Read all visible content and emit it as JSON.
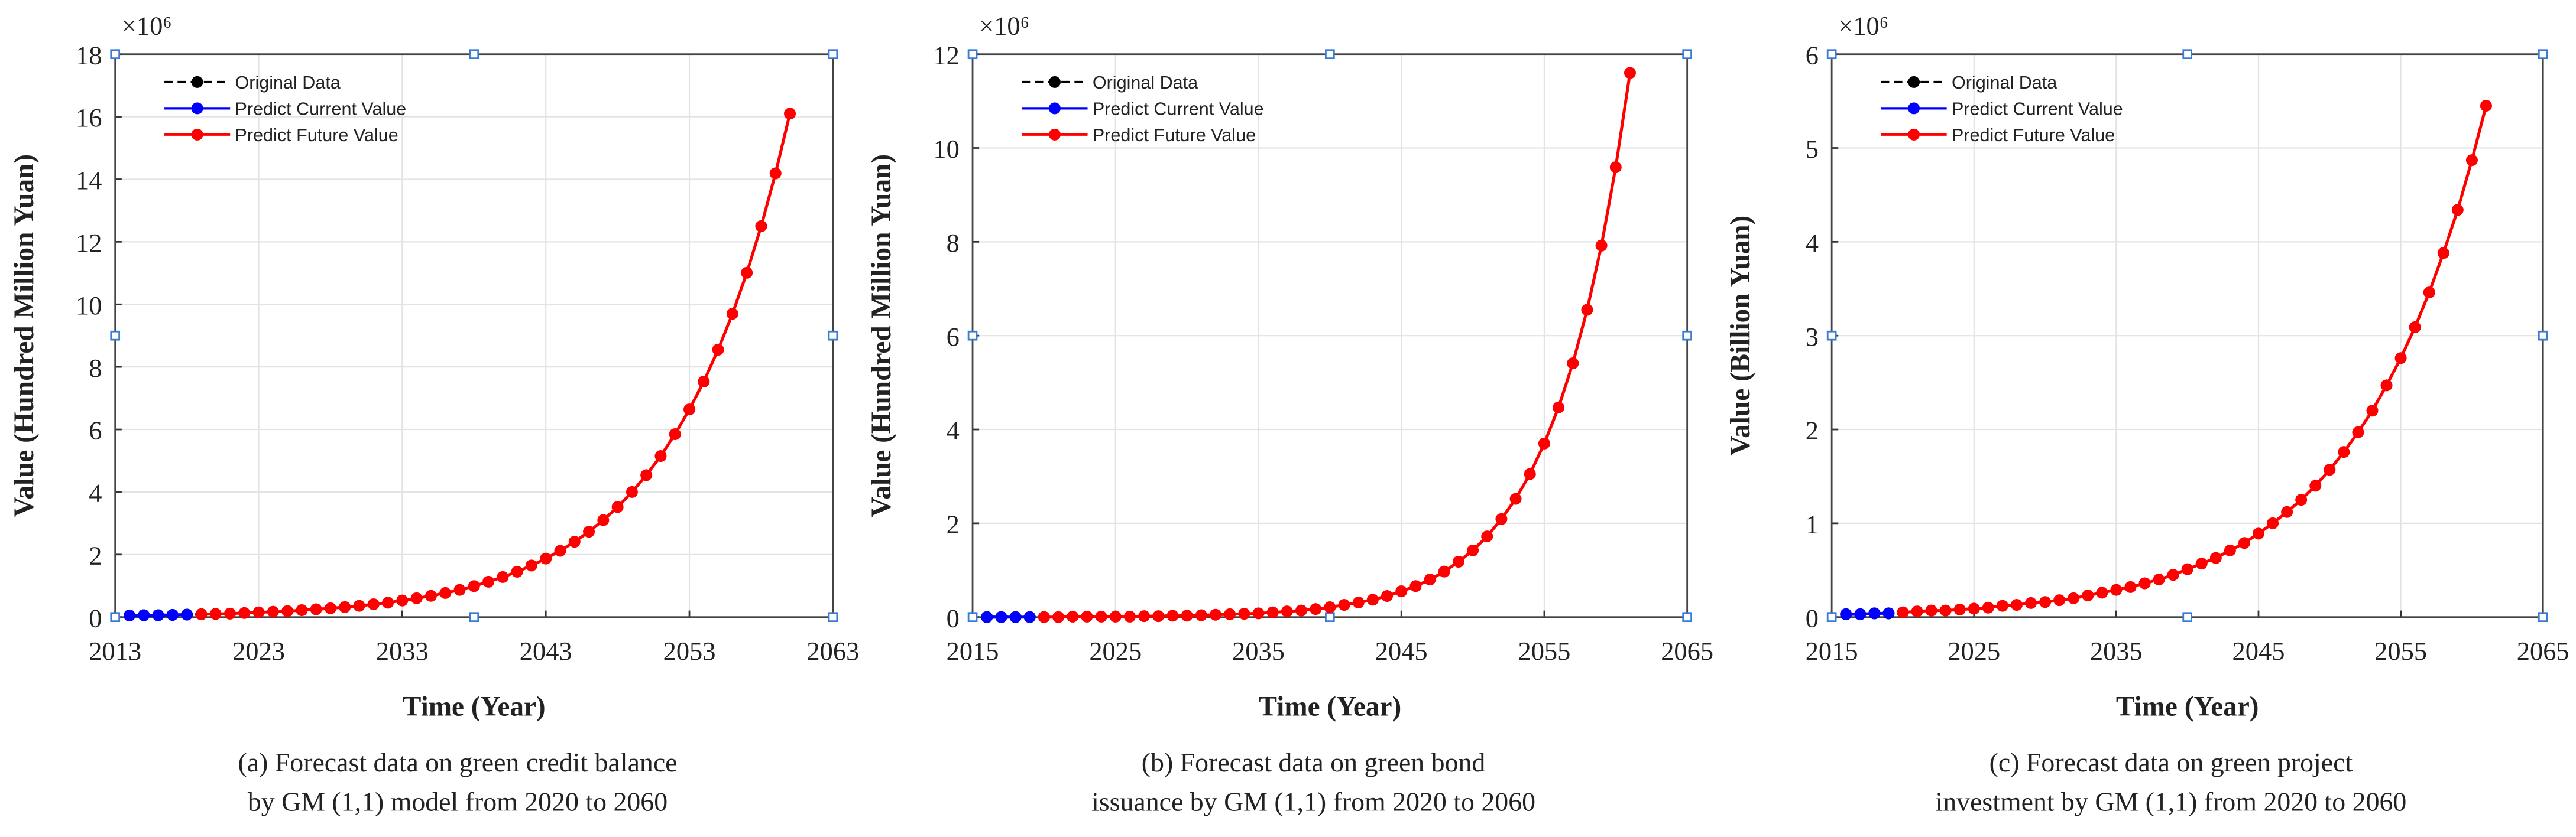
{
  "chart_data": [
    {
      "type": "line",
      "multiplier": "×10⁶",
      "xlabel": "Time (Year)",
      "ylabel": "Value (Hundred Million Yuan)",
      "caption": [
        "(a)  Forecast data on green credit balance",
        "by GM (1,1) model from 2020 to 2060"
      ],
      "xlim": [
        2013,
        2063
      ],
      "xticks": [
        2013,
        2023,
        2033,
        2043,
        2053,
        2063
      ],
      "ylim": [
        0,
        18
      ],
      "yticks": [
        0,
        2,
        4,
        6,
        8,
        10,
        12,
        14,
        16,
        18
      ],
      "grid": true,
      "legend": "upper left",
      "series": [
        {
          "name": "Original Data",
          "color": "#000000",
          "dashed": true,
          "x": [
            2014,
            2015,
            2016,
            2017,
            2018,
            2019
          ],
          "values": [
            0.05,
            0.06,
            0.06,
            0.07,
            0.08,
            0.09
          ]
        },
        {
          "name": "Predict Current Value",
          "color": "#0000ff",
          "x": [
            2014,
            2015,
            2016,
            2017,
            2018
          ],
          "values": [
            0.05,
            0.06,
            0.06,
            0.07,
            0.08
          ]
        },
        {
          "name": "Predict Future Value",
          "color": "#ff0000",
          "x": [
            2019,
            2020,
            2021,
            2022,
            2023,
            2024,
            2025,
            2026,
            2027,
            2028,
            2029,
            2030,
            2031,
            2032,
            2033,
            2034,
            2035,
            2036,
            2037,
            2038,
            2039,
            2040,
            2041,
            2042,
            2043,
            2044,
            2045,
            2046,
            2047,
            2048,
            2049,
            2050,
            2051,
            2052,
            2053,
            2054,
            2055,
            2056,
            2057,
            2058,
            2059,
            2060
          ],
          "values": [
            0.09,
            0.1,
            0.11,
            0.13,
            0.15,
            0.17,
            0.19,
            0.22,
            0.25,
            0.28,
            0.32,
            0.36,
            0.41,
            0.46,
            0.53,
            0.6,
            0.68,
            0.77,
            0.87,
            0.99,
            1.13,
            1.28,
            1.45,
            1.65,
            1.87,
            2.12,
            2.41,
            2.73,
            3.1,
            3.52,
            4.0,
            4.54,
            5.15,
            5.85,
            6.64,
            7.53,
            8.55,
            9.7,
            11.01,
            12.5,
            14.19,
            16.1
          ]
        }
      ]
    },
    {
      "type": "line",
      "multiplier": "×10⁶",
      "xlabel": "Time (Year)",
      "ylabel": "Value (Hundred Million Yuan)",
      "caption": [
        "(b)   Forecast data on green bond",
        "issuance by GM (1,1) from 2020 to 2060"
      ],
      "xlim": [
        2015,
        2065
      ],
      "xticks": [
        2015,
        2025,
        2035,
        2045,
        2055,
        2065
      ],
      "ylim": [
        0,
        12
      ],
      "yticks": [
        0,
        2,
        4,
        6,
        8,
        10,
        12
      ],
      "grid": true,
      "legend": "upper left",
      "series": [
        {
          "name": "Original Data",
          "color": "#000000",
          "dashed": true,
          "x": [
            2016,
            2017,
            2018,
            2019,
            2020
          ],
          "values": [
            0,
            0,
            0,
            0,
            0
          ]
        },
        {
          "name": "Predict Current Value",
          "color": "#0000ff",
          "x": [
            2016,
            2017,
            2018,
            2019
          ],
          "values": [
            0,
            0,
            0,
            0
          ]
        },
        {
          "name": "Predict Future Value",
          "color": "#ff0000",
          "x": [
            2020,
            2021,
            2022,
            2023,
            2024,
            2025,
            2026,
            2027,
            2028,
            2029,
            2030,
            2031,
            2032,
            2033,
            2034,
            2035,
            2036,
            2037,
            2038,
            2039,
            2040,
            2041,
            2042,
            2043,
            2044,
            2045,
            2046,
            2047,
            2048,
            2049,
            2050,
            2051,
            2052,
            2053,
            2054,
            2055,
            2056,
            2057,
            2058,
            2059,
            2060,
            2061
          ],
          "values": [
            0,
            0,
            0.01,
            0.01,
            0.01,
            0.01,
            0.01,
            0.02,
            0.02,
            0.03,
            0.03,
            0.04,
            0.05,
            0.06,
            0.07,
            0.08,
            0.1,
            0.12,
            0.14,
            0.17,
            0.21,
            0.26,
            0.31,
            0.37,
            0.45,
            0.55,
            0.66,
            0.8,
            0.97,
            1.18,
            1.42,
            1.72,
            2.09,
            2.52,
            3.05,
            3.7,
            4.47,
            5.41,
            6.55,
            7.92,
            9.59,
            11.6
          ]
        }
      ]
    },
    {
      "type": "line",
      "multiplier": "×10⁶",
      "xlabel": "Time (Year)",
      "ylabel": "Value (Billion Yuan)",
      "caption": [
        "(c)  Forecast data on green project",
        "investment by GM (1,1) from 2020 to 2060"
      ],
      "xlim": [
        2015,
        2065
      ],
      "xticks": [
        2015,
        2025,
        2035,
        2045,
        2055,
        2065
      ],
      "ylim": [
        0,
        6
      ],
      "yticks": [
        0,
        1,
        2,
        3,
        4,
        5,
        6
      ],
      "grid": true,
      "legend": "upper left",
      "series": [
        {
          "name": "Original Data",
          "color": "#000000",
          "dashed": true,
          "x": [
            2016,
            2017,
            2018,
            2019,
            2020
          ],
          "values": [
            0.03,
            0.03,
            0.04,
            0.04,
            0.05
          ]
        },
        {
          "name": "Predict Current Value",
          "color": "#0000ff",
          "x": [
            2016,
            2017,
            2018,
            2019
          ],
          "values": [
            0.03,
            0.03,
            0.04,
            0.04
          ]
        },
        {
          "name": "Predict Future Value",
          "color": "#ff0000",
          "x": [
            2020,
            2021,
            2022,
            2023,
            2024,
            2025,
            2026,
            2027,
            2028,
            2029,
            2030,
            2031,
            2032,
            2033,
            2034,
            2035,
            2036,
            2037,
            2038,
            2039,
            2040,
            2041,
            2042,
            2043,
            2044,
            2045,
            2046,
            2047,
            2048,
            2049,
            2050,
            2051,
            2052,
            2053,
            2054,
            2055,
            2056,
            2057,
            2058,
            2059,
            2060,
            2061
          ],
          "values": [
            0.05,
            0.06,
            0.07,
            0.07,
            0.08,
            0.09,
            0.1,
            0.12,
            0.13,
            0.15,
            0.16,
            0.18,
            0.2,
            0.23,
            0.26,
            0.29,
            0.32,
            0.36,
            0.4,
            0.45,
            0.51,
            0.57,
            0.63,
            0.71,
            0.79,
            0.89,
            1.0,
            1.12,
            1.25,
            1.4,
            1.57,
            1.76,
            1.97,
            2.2,
            2.47,
            2.76,
            3.09,
            3.46,
            3.88,
            4.34,
            4.87,
            5.45
          ]
        }
      ]
    }
  ]
}
